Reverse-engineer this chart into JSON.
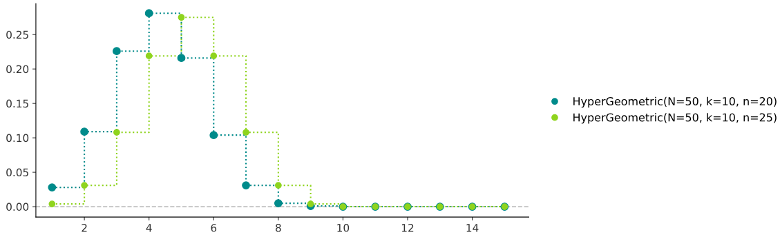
{
  "chart_data": {
    "type": "step",
    "x": [
      1,
      2,
      3,
      4,
      5,
      6,
      7,
      8,
      9,
      10,
      11,
      12,
      13,
      14,
      15
    ],
    "series": [
      {
        "name": "HyperGeometric(N=50, k=10, n=20)",
        "color": "#008b8b",
        "values": [
          0.028,
          0.109,
          0.226,
          0.281,
          0.216,
          0.104,
          0.031,
          0.005,
          0.001,
          0,
          0,
          0,
          0,
          0,
          0
        ]
      },
      {
        "name": "HyperGeometric(N=50, k=10, n=25)",
        "color": "#8fd41e",
        "values": [
          0.004,
          0.031,
          0.108,
          0.219,
          0.275,
          0.219,
          0.108,
          0.031,
          0.004,
          0,
          0,
          0,
          0,
          0,
          0
        ]
      }
    ],
    "xlim": [
      0.5,
      15.75
    ],
    "xticks": [
      2,
      4,
      6,
      8,
      10,
      12,
      14
    ],
    "ylim": [
      -0.015,
      0.295
    ],
    "yticks": [
      {
        "value": 0,
        "label": "0.00"
      },
      {
        "value": 0.05,
        "label": "0.05"
      },
      {
        "value": 0.1,
        "label": "0.10"
      },
      {
        "value": 0.15,
        "label": "0.15"
      },
      {
        "value": 0.2,
        "label": "0.20"
      },
      {
        "value": 0.25,
        "label": "0.25"
      }
    ],
    "ref_lines": [
      {
        "axis": "y",
        "value": 0,
        "color": "#c0c0c0",
        "line_style": "dashed"
      }
    ],
    "marker": "circle",
    "line_style": "dotted",
    "legend": "right",
    "grid": false
  }
}
